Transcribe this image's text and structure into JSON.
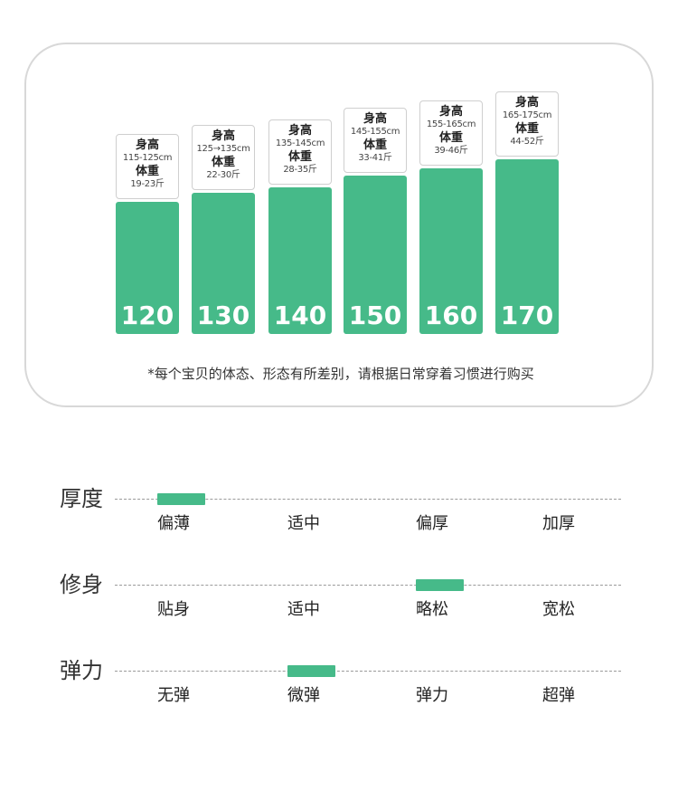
{
  "colors": {
    "accent": "#46ba89",
    "card_border": "#d8d8d8",
    "dash_line": "#9a9a9a"
  },
  "size_chart": {
    "height_label": "身高",
    "weight_label": "体重",
    "sizes": [
      {
        "size": "120",
        "height_range": "115-125cm",
        "weight_range": "19-23斤"
      },
      {
        "size": "130",
        "height_range": "125→135cm",
        "weight_range": "22-30斤"
      },
      {
        "size": "140",
        "height_range": "135-145cm",
        "weight_range": "28-35斤"
      },
      {
        "size": "150",
        "height_range": "145-155cm",
        "weight_range": "33-41斤"
      },
      {
        "size": "160",
        "height_range": "155-165cm",
        "weight_range": "39-46斤"
      },
      {
        "size": "170",
        "height_range": "165-175cm",
        "weight_range": "44-52斤"
      }
    ],
    "note": "*每个宝贝的体态、形态有所差别，请根据日常穿着习惯进行购买"
  },
  "attributes": [
    {
      "name": "厚度",
      "options": [
        "偏薄",
        "适中",
        "偏厚",
        "加厚"
      ],
      "selected_index": 0
    },
    {
      "name": "修身",
      "options": [
        "贴身",
        "适中",
        "略松",
        "宽松"
      ],
      "selected_index": 2
    },
    {
      "name": "弹力",
      "options": [
        "无弹",
        "微弹",
        "弹力",
        "超弹"
      ],
      "selected_index": 1
    }
  ]
}
